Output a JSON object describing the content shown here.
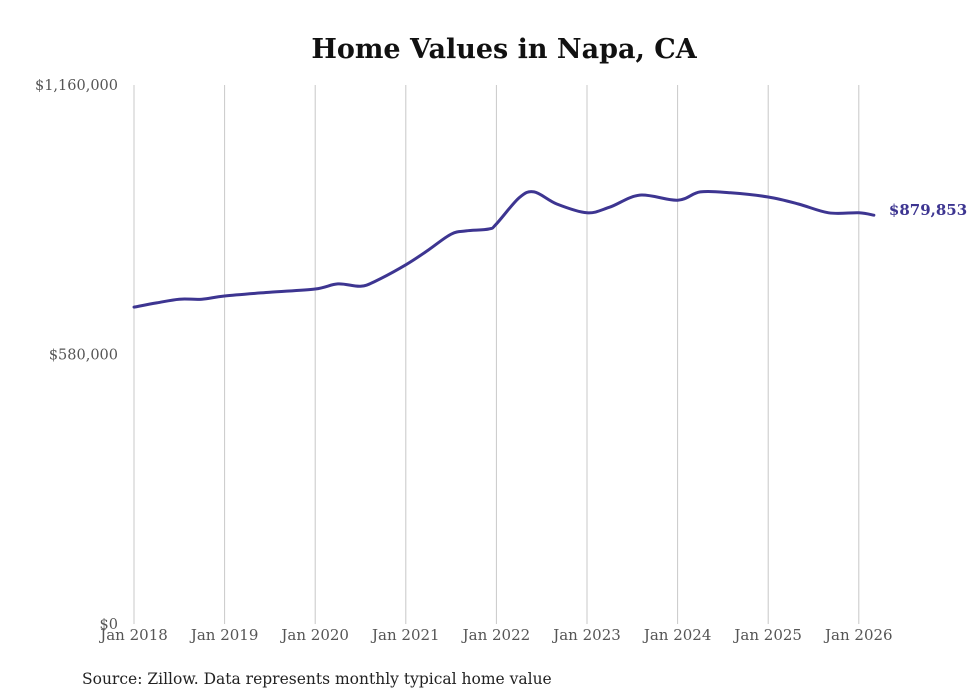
{
  "chart_data": {
    "type": "line",
    "title": "Home Values in Napa, CA",
    "xlabel": "",
    "ylabel": "",
    "ylim": [
      0,
      1160000
    ],
    "yticks": [
      0,
      580000,
      1160000
    ],
    "ytick_labels": [
      "$0",
      "$580,000",
      "$1,160,000"
    ],
    "xticks": [
      "Jan 2018",
      "Jan 2019",
      "Jan 2020",
      "Jan 2021",
      "Jan 2022",
      "Jan 2023",
      "Jan 2024",
      "Jan 2025",
      "Jan 2026"
    ],
    "grid": "vertical",
    "series": [
      {
        "name": "Typical home value",
        "color": "#3d3591",
        "x": [
          "2018-01",
          "2018-04",
          "2018-07",
          "2018-10",
          "2019-01",
          "2019-07",
          "2020-01",
          "2020-04",
          "2020-07",
          "2020-09",
          "2021-01",
          "2021-04",
          "2021-07",
          "2021-09",
          "2021-12",
          "2022-01",
          "2022-04",
          "2022-06",
          "2022-09",
          "2023-01",
          "2023-04",
          "2023-08",
          "2024-01",
          "2024-04",
          "2024-08",
          "2025-01",
          "2025-05",
          "2025-09",
          "2026-01",
          "2026-03"
        ],
        "values": [
          682000,
          691000,
          699000,
          699000,
          706000,
          714000,
          721000,
          732000,
          727000,
          738000,
          773000,
          805000,
          839000,
          846000,
          850000,
          861000,
          917000,
          930000,
          904000,
          885000,
          897000,
          923000,
          912000,
          930000,
          928000,
          919000,
          904000,
          885000,
          885000,
          879853
        ]
      }
    ],
    "end_label": "$879,853",
    "source": "Source: Zillow. Data represents monthly typical home value"
  }
}
